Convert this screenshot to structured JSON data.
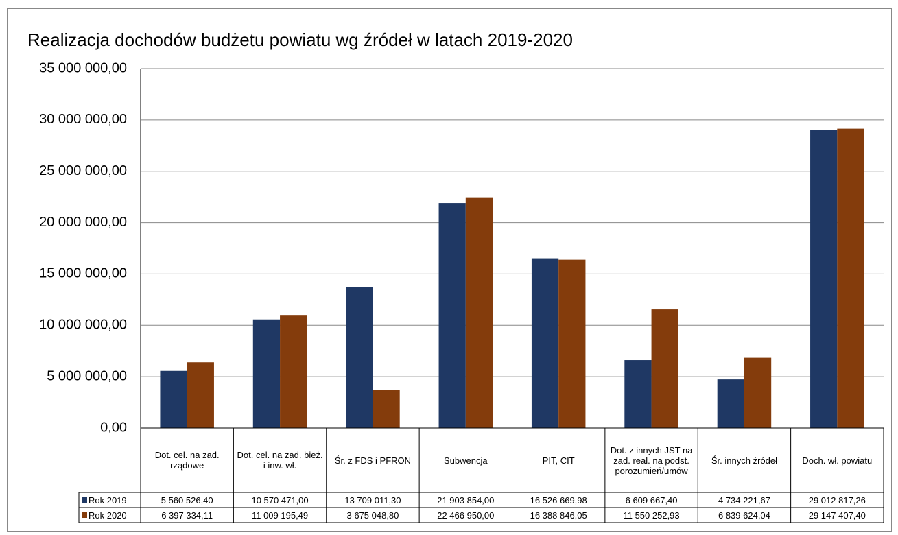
{
  "chart_data": {
    "type": "bar",
    "title": "Realizacja dochodów budżetu powiatu wg źródeł  w latach 2019-2020",
    "categories": [
      "Dot. cel. na zad. rządowe",
      "Dot. cel. na zad. bież. i inw. wł.",
      "Śr. z FDS i PFRON",
      "Subwencja",
      "PIT, CIT",
      "Dot. z innych JST na zad. real. na podst. porozumień/umów",
      "Śr. innych źródeł",
      "Doch. wł. powiatu"
    ],
    "series": [
      {
        "name": "Rok 2019",
        "color": "#1f3864",
        "values": [
          5560526.4,
          10570471.0,
          13709011.3,
          21903854.0,
          16526669.98,
          6609667.4,
          4734221.67,
          29012817.26
        ],
        "value_labels": [
          "5 560 526,40",
          "10 570 471,00",
          "13 709 011,30",
          "21 903 854,00",
          "16 526 669,98",
          "6 609 667,40",
          "4 734 221,67",
          "29 012 817,26"
        ]
      },
      {
        "name": "Rok 2020",
        "color": "#843c0c",
        "values": [
          6397334.11,
          11009195.49,
          3675048.8,
          22466950.0,
          16388846.05,
          11550252.93,
          6839624.04,
          29147407.4
        ],
        "value_labels": [
          "6 397 334,11",
          "11 009 195,49",
          "3 675 048,80",
          "22 466 950,00",
          "16 388 846,05",
          "11 550 252,93",
          "6 839 624,04",
          "29 147 407,40"
        ]
      }
    ],
    "ylim": [
      0,
      35000000
    ],
    "yticks": [
      {
        "value": 0,
        "label": "0,00"
      },
      {
        "value": 5000000,
        "label": "5 000 000,00"
      },
      {
        "value": 10000000,
        "label": "10 000 000,00"
      },
      {
        "value": 15000000,
        "label": "15 000 000,00"
      },
      {
        "value": 20000000,
        "label": "20 000 000,00"
      },
      {
        "value": 25000000,
        "label": "25 000 000,00"
      },
      {
        "value": 30000000,
        "label": "30 000 000,00"
      },
      {
        "value": 35000000,
        "label": "35 000 000,00"
      }
    ],
    "grid": true
  }
}
